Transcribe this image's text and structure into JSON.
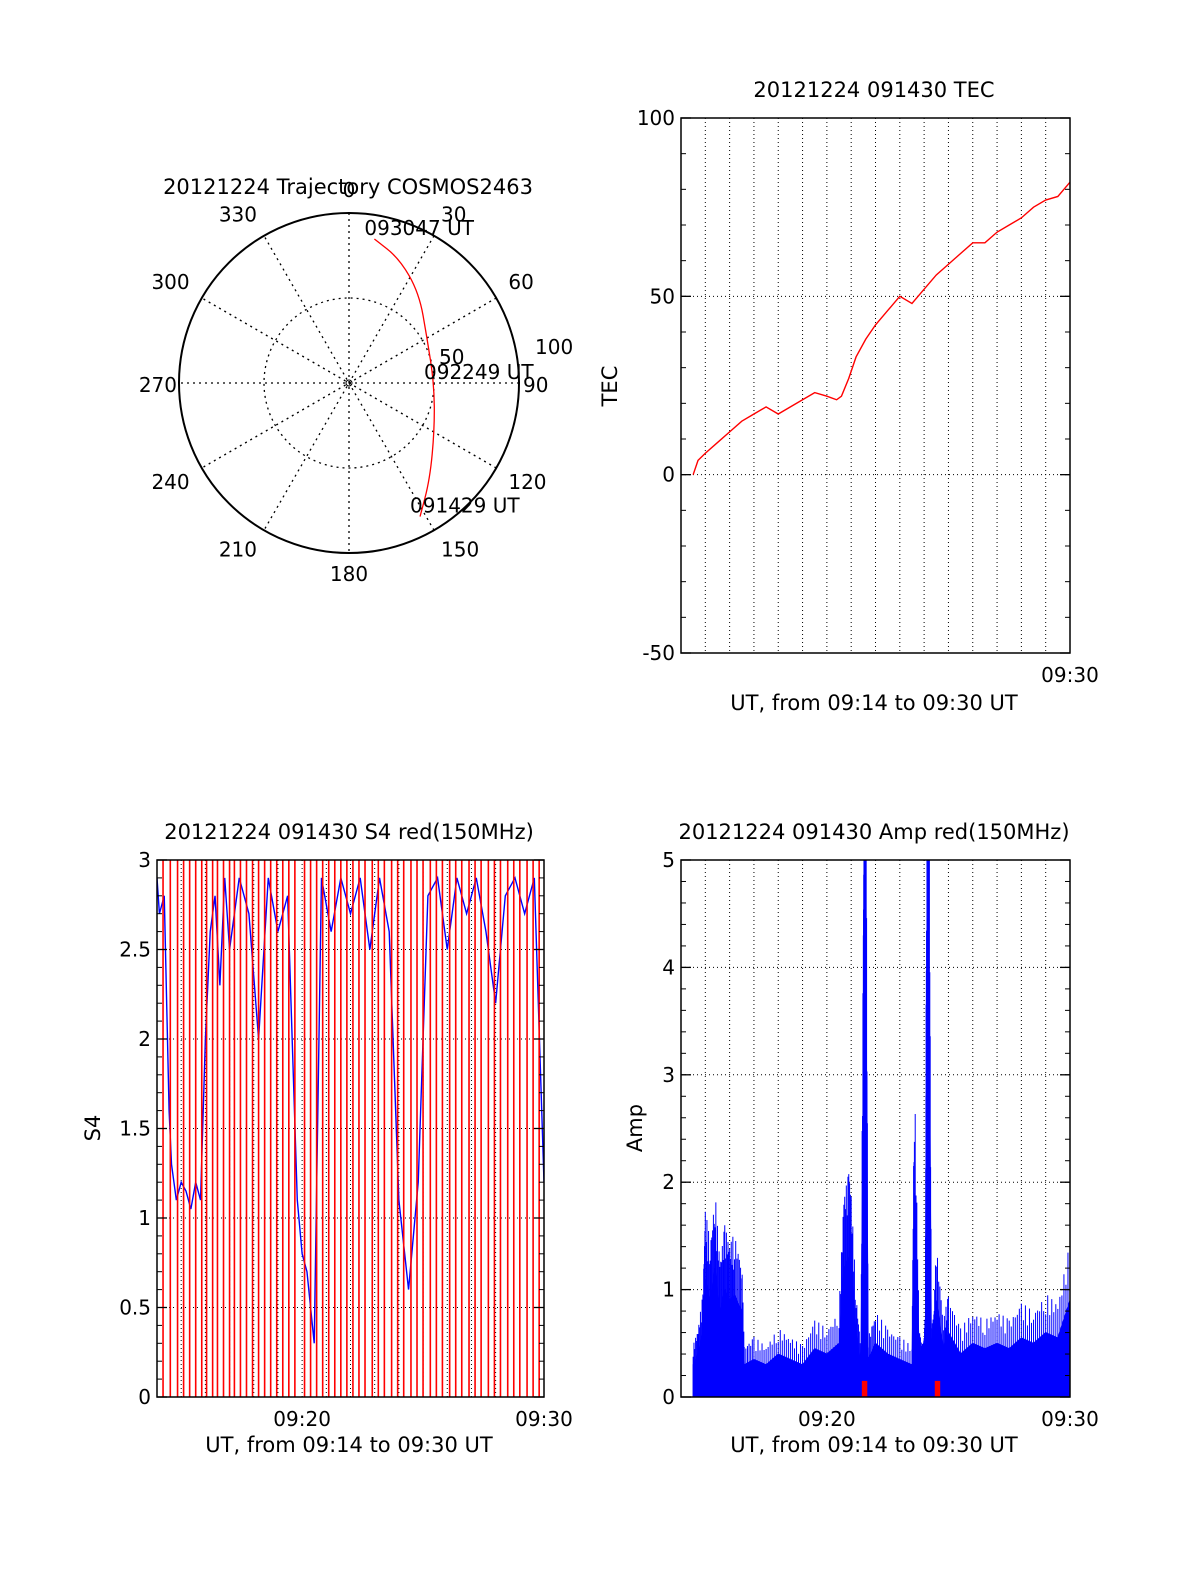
{
  "colors": {
    "red": "#ff0000",
    "blue": "#0000ff",
    "axis": "#000000"
  },
  "chart_data": [
    {
      "id": "trajectory",
      "type": "polar",
      "title": "20121224 Trajectory COSMOS2463",
      "azimuth_ticks": [
        {
          "deg": 0,
          "label": "0"
        },
        {
          "deg": 30,
          "label": "30"
        },
        {
          "deg": 60,
          "label": "60"
        },
        {
          "deg": 90,
          "label": "90"
        },
        {
          "deg": 120,
          "label": "120"
        },
        {
          "deg": 150,
          "label": "150"
        },
        {
          "deg": 180,
          "label": "180"
        },
        {
          "deg": 210,
          "label": "210"
        },
        {
          "deg": 240,
          "label": "240"
        },
        {
          "deg": 270,
          "label": "270"
        },
        {
          "deg": 300,
          "label": "300"
        },
        {
          "deg": 330,
          "label": "330"
        }
      ],
      "radial_rings": [
        50,
        100
      ],
      "radial_labels": [
        "50",
        "100"
      ],
      "radial_max": 100,
      "grid": true,
      "track": [
        {
          "az": 10,
          "r": 86,
          "label": "093047 UT"
        },
        {
          "az": 22,
          "r": 79
        },
        {
          "az": 38,
          "r": 67
        },
        {
          "az": 60,
          "r": 53
        },
        {
          "az": 90,
          "r": 50,
          "label": "092249 UT"
        },
        {
          "az": 118,
          "r": 57
        },
        {
          "az": 140,
          "r": 74
        },
        {
          "az": 152,
          "r": 89,
          "label": "091429 UT"
        }
      ],
      "track_color": "red"
    },
    {
      "id": "tec",
      "type": "line",
      "title": "20121224 091430 TEC",
      "ylabel": "TEC",
      "xlabel": "UT, from 09:14 to 09:30 UT",
      "xlim": [
        0,
        16
      ],
      "x_tick_labels": [
        {
          "x": 16,
          "label": "09:30"
        }
      ],
      "ylim": [
        -50,
        100
      ],
      "y_ticks": [
        {
          "v": -50,
          "label": "-50"
        },
        {
          "v": 0,
          "label": "0"
        },
        {
          "v": 50,
          "label": "50"
        },
        {
          "v": 100,
          "label": "100"
        }
      ],
      "grid": true,
      "series": [
        {
          "color": "red",
          "x": [
            0.5,
            0.7,
            1.0,
            1.5,
            2.0,
            2.5,
            3.0,
            3.5,
            4.0,
            4.5,
            5.0,
            5.5,
            6.0,
            6.4,
            6.6,
            6.9,
            7.2,
            7.6,
            8.0,
            8.5,
            9.0,
            9.5,
            10.0,
            10.5,
            11.0,
            11.5,
            12.0,
            12.5,
            13.0,
            13.5,
            14.0,
            14.5,
            15.0,
            15.5,
            16.0
          ],
          "y": [
            0,
            4,
            6,
            9,
            12,
            15,
            17,
            19,
            17,
            19,
            21,
            23,
            22,
            21,
            22,
            27,
            33,
            38,
            42,
            46,
            50,
            48,
            52,
            56,
            59,
            62,
            65,
            65,
            68,
            70,
            72,
            75,
            77,
            78,
            82
          ]
        }
      ]
    },
    {
      "id": "s4",
      "type": "line",
      "title": "20121224 091430 S4 red(150MHz)",
      "ylabel": "S4",
      "xlabel": "UT, from 09:14 to 09:30 UT",
      "xlim": [
        0,
        16
      ],
      "x_tick_labels": [
        {
          "x": 6,
          "label": "09:20"
        },
        {
          "x": 16,
          "label": "09:30"
        }
      ],
      "ylim": [
        0,
        3
      ],
      "y_ticks": [
        {
          "v": 0,
          "label": "0"
        },
        {
          "v": 0.5,
          "label": "0.5"
        },
        {
          "v": 1,
          "label": "1"
        },
        {
          "v": 1.5,
          "label": "1.5"
        },
        {
          "v": 2,
          "label": "2"
        },
        {
          "v": 2.5,
          "label": "2.5"
        },
        {
          "v": 3,
          "label": "3"
        }
      ],
      "grid": true,
      "series": [
        {
          "color": "blue",
          "x": [
            0.0,
            0.1,
            0.3,
            0.5,
            0.6,
            0.8,
            1.0,
            1.2,
            1.4,
            1.6,
            1.8,
            2.0,
            2.2,
            2.4,
            2.6,
            2.8,
            3.0,
            3.4,
            3.8,
            4.2,
            4.6,
            5.0,
            5.4,
            5.8,
            6.0,
            6.2,
            6.5,
            6.8,
            7.2,
            7.6,
            8.0,
            8.4,
            8.8,
            9.2,
            9.6,
            10.0,
            10.4,
            10.8,
            11.2,
            11.6,
            12.0,
            12.4,
            12.8,
            13.2,
            13.6,
            14.0,
            14.4,
            14.8,
            15.2,
            15.6,
            16.0
          ],
          "y": [
            2.9,
            2.7,
            2.8,
            1.6,
            1.3,
            1.1,
            1.2,
            1.15,
            1.05,
            1.2,
            1.1,
            2.0,
            2.6,
            2.8,
            2.3,
            2.9,
            2.5,
            2.9,
            2.7,
            2.0,
            2.9,
            2.6,
            2.8,
            1.1,
            0.8,
            0.7,
            0.3,
            2.9,
            2.6,
            2.9,
            2.7,
            2.9,
            2.5,
            2.9,
            2.6,
            1.1,
            0.6,
            1.2,
            2.8,
            2.9,
            2.5,
            2.9,
            2.7,
            2.9,
            2.6,
            2.2,
            2.8,
            2.9,
            2.7,
            2.9,
            1.2
          ]
        },
        {
          "color": "red",
          "type": "spikes",
          "x": [
            0.25,
            0.55,
            0.85,
            1.1,
            1.35,
            1.6,
            1.85,
            2.05,
            2.3,
            2.5,
            2.75,
            3.0,
            3.2,
            3.45,
            3.7,
            3.95,
            4.2,
            4.45,
            4.7,
            4.95,
            5.2,
            5.45,
            5.7,
            6.1,
            6.35,
            6.6,
            6.85,
            7.1,
            7.35,
            7.6,
            7.85,
            8.1,
            8.35,
            8.6,
            8.9,
            9.15,
            9.4,
            9.7,
            9.95,
            10.2,
            10.5,
            10.75,
            11.0,
            11.3,
            11.55,
            11.8,
            12.1,
            12.35,
            12.6,
            12.9,
            13.15,
            13.4,
            13.7,
            13.95,
            14.2,
            14.5,
            14.75,
            15.0,
            15.3,
            15.55,
            15.8
          ],
          "y": 3
        }
      ]
    },
    {
      "id": "amp",
      "type": "line",
      "title": "20121224 091430 Amp red(150MHz)",
      "ylabel": "Amp",
      "xlabel": "UT, from 09:14 to 09:30 UT",
      "xlim": [
        0,
        16
      ],
      "x_tick_labels": [
        {
          "x": 6,
          "label": "09:20"
        },
        {
          "x": 16,
          "label": "09:30"
        }
      ],
      "ylim": [
        0,
        5
      ],
      "y_ticks": [
        {
          "v": 0,
          "label": "0"
        },
        {
          "v": 1,
          "label": "1"
        },
        {
          "v": 2,
          "label": "2"
        },
        {
          "v": 3,
          "label": "3"
        },
        {
          "v": 4,
          "label": "4"
        },
        {
          "v": 5,
          "label": "5"
        }
      ],
      "grid": true,
      "series": [
        {
          "color": "blue",
          "type": "filled",
          "x": [
            0.5,
            0.7,
            0.9,
            1.0,
            1.2,
            1.4,
            1.6,
            1.8,
            2.0,
            2.2,
            2.5,
            2.6,
            3.0,
            3.5,
            4.0,
            4.5,
            5.0,
            5.5,
            6.0,
            6.5,
            6.7,
            6.9,
            7.0,
            7.2,
            7.4,
            7.5,
            7.55,
            7.6,
            7.7,
            8.0,
            8.5,
            9.0,
            9.5,
            9.6,
            9.8,
            9.9,
            10.0,
            10.05,
            10.1,
            10.2,
            10.3,
            10.4,
            10.5,
            10.8,
            11.0,
            11.5,
            12.0,
            12.5,
            13.0,
            13.5,
            14.0,
            14.5,
            15.0,
            15.5,
            16.0
          ],
          "y": [
            0.3,
            0.4,
            0.6,
            1.1,
            0.9,
            1.2,
            0.8,
            1.0,
            0.9,
            0.95,
            0.8,
            0.3,
            0.35,
            0.3,
            0.4,
            0.35,
            0.3,
            0.45,
            0.4,
            0.5,
            1.2,
            1.3,
            1.2,
            0.6,
            0.3,
            2.8,
            4.3,
            4.1,
            0.35,
            0.5,
            0.4,
            0.35,
            0.3,
            1.9,
            0.4,
            0.3,
            0.35,
            0.5,
            3.3,
            3.9,
            0.4,
            0.5,
            0.9,
            0.45,
            0.6,
            0.4,
            0.5,
            0.45,
            0.5,
            0.45,
            0.55,
            0.5,
            0.6,
            0.55,
            0.9
          ]
        },
        {
          "color": "red",
          "type": "markers",
          "x": [
            7.5,
            7.6,
            10.5,
            10.6
          ],
          "y": 0.05
        }
      ]
    }
  ]
}
